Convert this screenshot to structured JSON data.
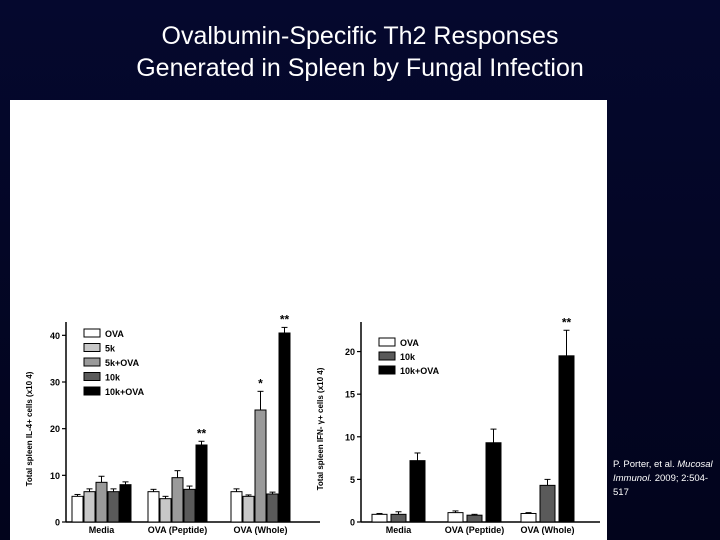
{
  "slide": {
    "title_line1": "Ovalbumin-Specific Th2 Responses",
    "title_line2": "Generated in Spleen by Fungal Infection"
  },
  "citation": {
    "authors": "P. Porter, et al.",
    "journal": "Mucosal Immunol.",
    "year_vol": "2009;",
    "pages": "2:504-517"
  },
  "chart_data": [
    {
      "type": "bar",
      "ylabel": "Total spleen IL-4+ cells (x10 4)",
      "ylim": [
        0,
        42
      ],
      "yticks": [
        0,
        10,
        20,
        30,
        40
      ],
      "categories": [
        "Media",
        "OVA (Peptide)",
        "OVA (Whole)"
      ],
      "legend": "top-left",
      "series": [
        {
          "name": "OVA",
          "color": "#ffffff",
          "values": [
            5.5,
            6.5,
            6.5
          ],
          "errors": [
            0.4,
            0.5,
            0.6
          ]
        },
        {
          "name": "5k",
          "color": "#c8c8c8",
          "values": [
            6.5,
            5.0,
            5.5
          ],
          "errors": [
            0.6,
            0.5,
            0.3
          ]
        },
        {
          "name": "5k+OVA",
          "color": "#9a9a9a",
          "values": [
            8.5,
            9.5,
            24.0
          ],
          "errors": [
            1.3,
            1.5,
            4.0
          ]
        },
        {
          "name": "10k",
          "color": "#5a5a5a",
          "values": [
            6.5,
            7.0,
            6.0
          ],
          "errors": [
            0.6,
            0.7,
            0.4
          ]
        },
        {
          "name": "10k+OVA",
          "color": "#000000",
          "values": [
            8.0,
            16.5,
            40.5
          ],
          "errors": [
            0.6,
            0.8,
            1.2
          ]
        }
      ],
      "annotations": [
        {
          "group": 1,
          "series": 4,
          "text": "**"
        },
        {
          "group": 2,
          "series": 2,
          "text": "*"
        },
        {
          "group": 2,
          "series": 4,
          "text": "**"
        }
      ]
    },
    {
      "type": "bar",
      "ylabel": "Total spleen IFN- γ+ cells (x10 4)",
      "ylim": [
        0,
        23
      ],
      "yticks": [
        0,
        5,
        10,
        15,
        20
      ],
      "categories": [
        "Media",
        "OVA (Peptide)",
        "OVA (Whole)"
      ],
      "legend": "top-left",
      "series": [
        {
          "name": "OVA",
          "color": "#ffffff",
          "values": [
            0.9,
            1.1,
            1.0
          ],
          "errors": [
            0.1,
            0.2,
            0.1
          ]
        },
        {
          "name": "10k",
          "color": "#5a5a5a",
          "values": [
            0.9,
            0.8,
            4.3
          ],
          "errors": [
            0.3,
            0.1,
            0.7
          ]
        },
        {
          "name": "10k+OVA",
          "color": "#000000",
          "values": [
            7.2,
            9.3,
            19.5
          ],
          "errors": [
            0.9,
            1.6,
            3.0
          ]
        }
      ],
      "annotations": [
        {
          "group": 2,
          "series": 2,
          "text": "**"
        }
      ]
    }
  ]
}
